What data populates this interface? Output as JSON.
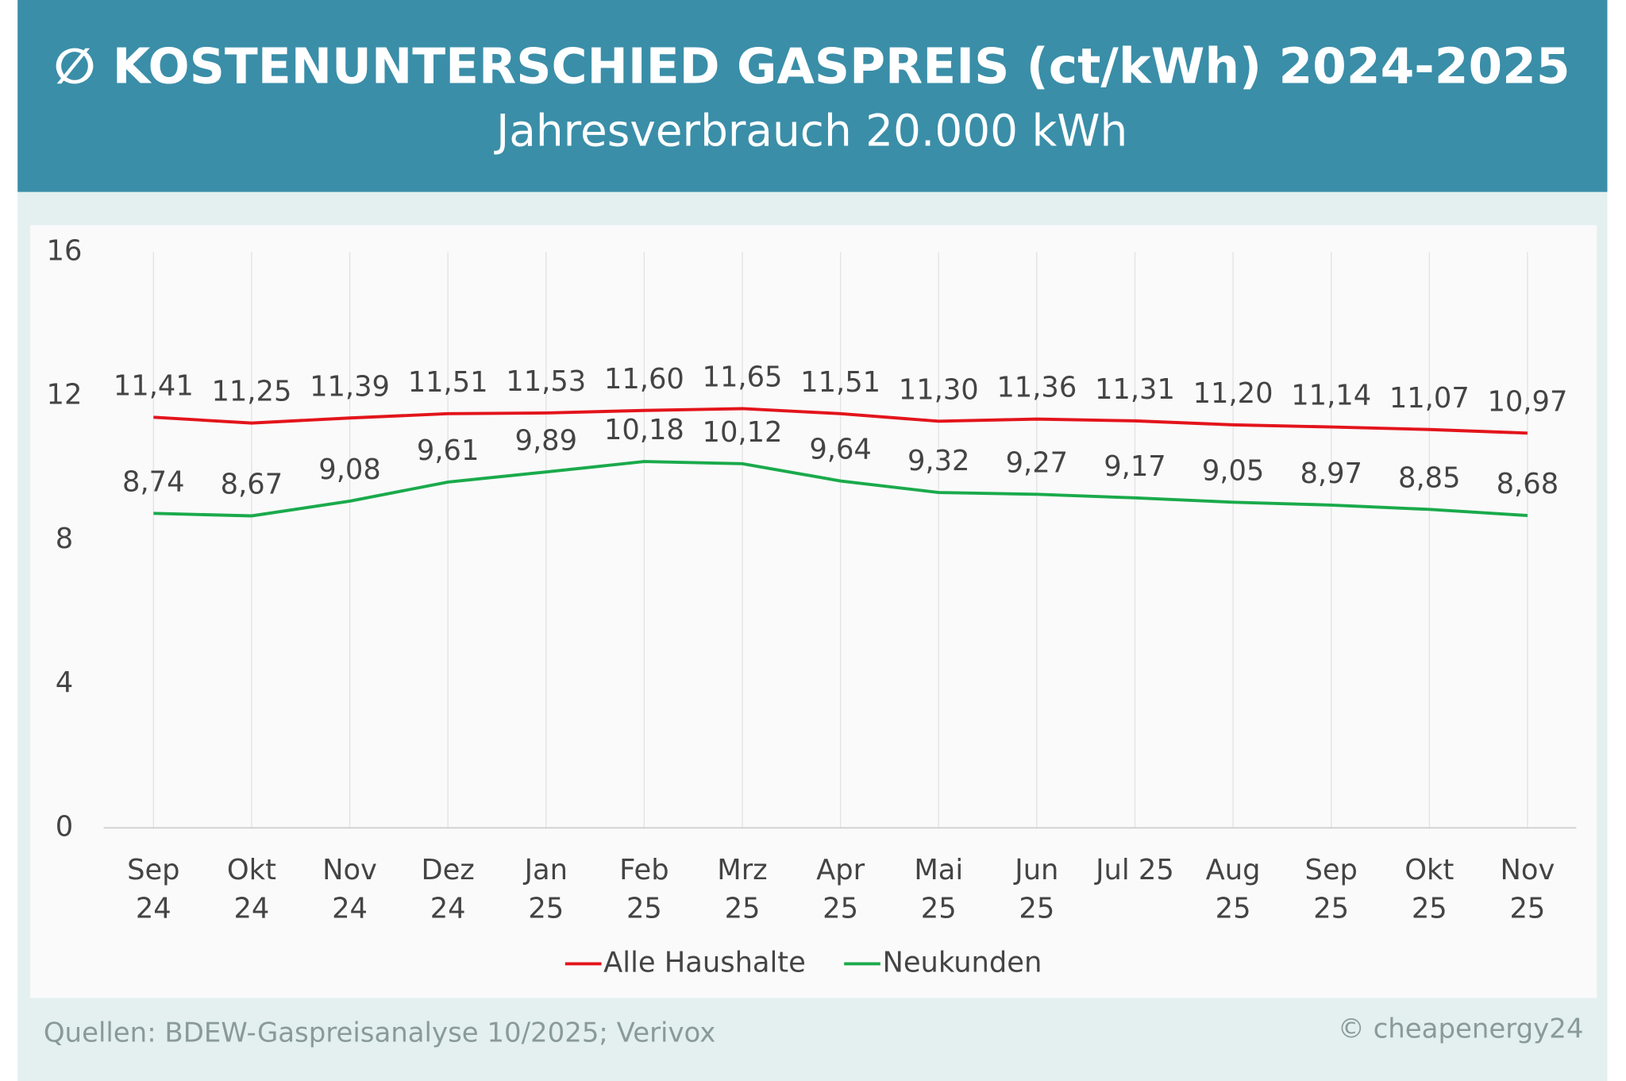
{
  "chart_data": {
    "type": "line",
    "title": "∅ KOSTENUNTERSCHIED GASPREIS (ct/kWh) 2024-2025",
    "subtitle": "Jahresverbrauch 20.000 kWh",
    "categories": [
      [
        "Sep",
        "24"
      ],
      [
        "Okt",
        "24"
      ],
      [
        "Nov",
        "24"
      ],
      [
        "Dez",
        "24"
      ],
      [
        "Jan",
        "25"
      ],
      [
        "Feb",
        "25"
      ],
      [
        "Mrz",
        "25"
      ],
      [
        "Apr",
        "25"
      ],
      [
        "Mai",
        "25"
      ],
      [
        "Jun",
        "25"
      ],
      [
        "Jul 25"
      ],
      [
        "Aug",
        "25"
      ],
      [
        "Sep",
        "25"
      ],
      [
        "Okt",
        "25"
      ],
      [
        "Nov",
        "25"
      ]
    ],
    "series": [
      {
        "name": "Alle Haushalte",
        "color": "#e3141b",
        "values": [
          11.41,
          11.25,
          11.39,
          11.51,
          11.53,
          11.6,
          11.65,
          11.51,
          11.3,
          11.36,
          11.31,
          11.2,
          11.14,
          11.07,
          10.97
        ],
        "value_labels": [
          "11,41",
          "11,25",
          "11,39",
          "11,51",
          "11,53",
          "11,60",
          "11,65",
          "11,51",
          "11,30",
          "11,36",
          "11,31",
          "11,20",
          "11,14",
          "11,07",
          "10,97"
        ]
      },
      {
        "name": "Neukunden",
        "color": "#1aaa4b",
        "values": [
          8.74,
          8.67,
          9.08,
          9.61,
          9.89,
          10.18,
          10.12,
          9.64,
          9.32,
          9.27,
          9.17,
          9.05,
          8.97,
          8.85,
          8.68
        ],
        "value_labels": [
          "8,74",
          "8,67",
          "9,08",
          "9,61",
          "9,89",
          "10,18",
          "10,12",
          "9,64",
          "9,32",
          "9,27",
          "9,17",
          "9,05",
          "8,97",
          "8,85",
          "8,68"
        ]
      }
    ],
    "ylim": [
      0,
      16
    ],
    "yticks": [
      0,
      4,
      8,
      12,
      16
    ],
    "grid": true,
    "legend": "bottom",
    "source": "Quellen: BDEW-Gaspreisanalyse 10/2025; Verivox",
    "copyright": "© cheapenergy24"
  }
}
